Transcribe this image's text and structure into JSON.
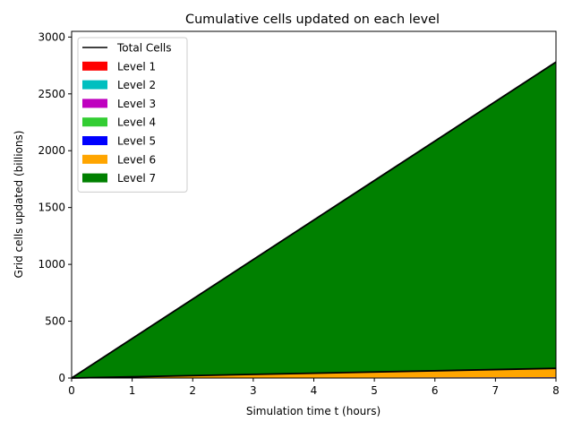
{
  "chart_data": {
    "type": "area",
    "title": "Cumulative cells updated on each level",
    "xlabel": "Simulation time t (hours)",
    "ylabel": "Grid cells updated (billions)",
    "xlim": [
      0,
      8
    ],
    "ylim": [
      0,
      3050
    ],
    "xticks": [
      0,
      1,
      2,
      3,
      4,
      5,
      6,
      7,
      8
    ],
    "yticks": [
      0,
      500,
      1000,
      1500,
      2000,
      2500,
      3000
    ],
    "grid": false,
    "legend_position": "top-left",
    "x": [
      0,
      8
    ],
    "total": {
      "name": "Total Cells",
      "color": "#000000",
      "values": [
        0,
        2780
      ]
    },
    "series": [
      {
        "name": "Level 1",
        "color": "#ff0000",
        "values": [
          0,
          0.05
        ]
      },
      {
        "name": "Level 2",
        "color": "#00bfbf",
        "values": [
          0,
          0.2
        ]
      },
      {
        "name": "Level 3",
        "color": "#bf00bf",
        "values": [
          0,
          0.8
        ]
      },
      {
        "name": "Level 4",
        "color": "#32cd32",
        "values": [
          0,
          2
        ]
      },
      {
        "name": "Level 5",
        "color": "#0000ff",
        "values": [
          0,
          4
        ]
      },
      {
        "name": "Level 6",
        "color": "#ffa500",
        "values": [
          0,
          78
        ]
      },
      {
        "name": "Level 7",
        "color": "#008000",
        "values": [
          0,
          2695
        ]
      }
    ]
  }
}
